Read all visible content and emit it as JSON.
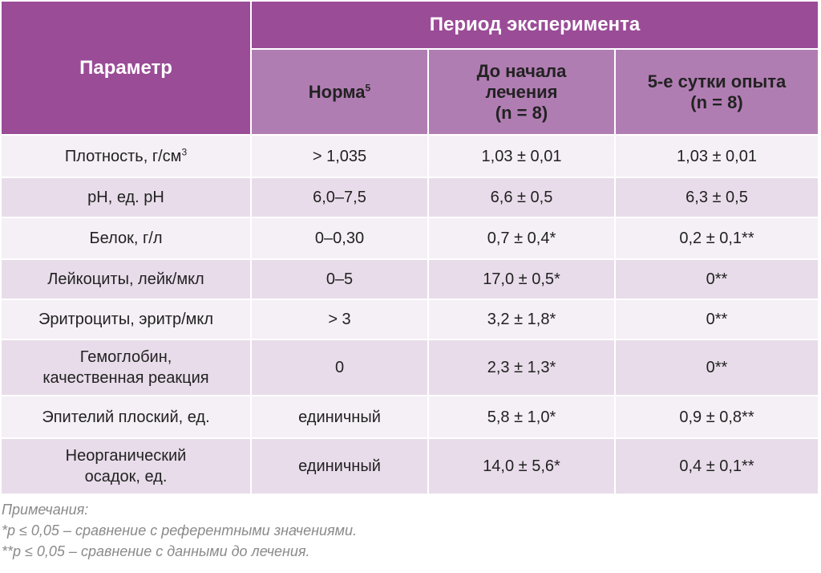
{
  "table": {
    "header": {
      "param": "Параметр",
      "period": "Период эксперимента",
      "columns": [
        {
          "lines": [
            "Норма"
          ],
          "sup": "5"
        },
        {
          "lines": [
            "До начала",
            "лечения",
            "(n = 8)"
          ]
        },
        {
          "lines": [
            "5-е сутки опыта",
            "(n = 8)"
          ]
        }
      ]
    },
    "rows": [
      [
        {
          "lines": [
            "Плотность, г/см"
          ],
          "sup": "3"
        },
        "> 1,035",
        "1,03 ± 0,01",
        "1,03 ± 0,01"
      ],
      [
        {
          "lines": [
            "pH, ед. pH"
          ]
        },
        "6,0–7,5",
        "6,6 ± 0,5",
        "6,3 ± 0,5"
      ],
      [
        {
          "lines": [
            "Белок, г/л"
          ]
        },
        "0–0,30",
        "0,7 ± 0,4*",
        "0,2 ± 0,1**"
      ],
      [
        {
          "lines": [
            "Лейкоциты, лейк/мкл"
          ]
        },
        "0–5",
        "17,0 ± 0,5*",
        "0**"
      ],
      [
        {
          "lines": [
            "Эритроциты, эритр/мкл"
          ]
        },
        "> 3",
        "3,2 ± 1,8*",
        "0**"
      ],
      [
        {
          "lines": [
            "Гемоглобин,",
            "качественная реакция"
          ]
        },
        "0",
        "2,3 ± 1,3*",
        "0**"
      ],
      [
        {
          "lines": [
            "Эпителий плоский, ед."
          ]
        },
        "единичный",
        "5,8 ± 1,0*",
        "0,9 ± 0,8**"
      ],
      [
        {
          "lines": [
            "Неорганический",
            "осадок, ед."
          ]
        },
        "единичный",
        "14,0 ± 5,6*",
        "0,4 ± 0,1**"
      ]
    ]
  },
  "notes": [
    "Примечания:",
    "*p ≤ 0,05 – сравнение с референтными значениями.",
    "**p ≤ 0,05 – сравнение с данными до лечения."
  ]
}
